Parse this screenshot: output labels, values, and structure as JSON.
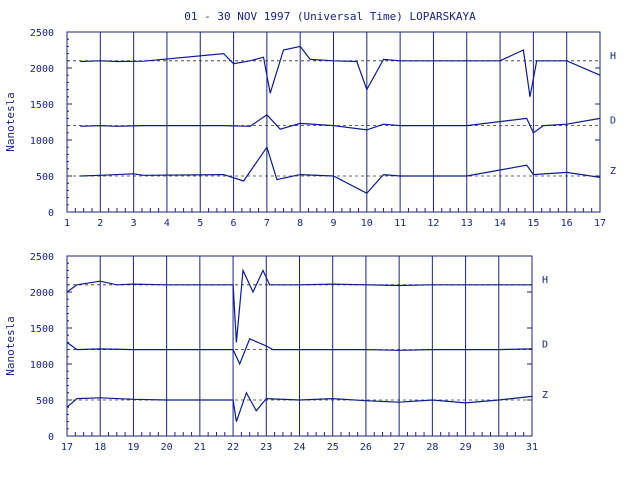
{
  "title": "01 - 30 NOV 1997 (Universal Time) LOPARSKAYA",
  "colors": {
    "ink": "#1a237e",
    "trace": "#0d1a8c"
  },
  "chart_data": [
    {
      "type": "line",
      "ylabel": "Nanotesla",
      "xlim": [
        1,
        17
      ],
      "ylim": [
        0,
        2500
      ],
      "x_ticks": [
        "1",
        "2",
        "3",
        "4",
        "5",
        "6",
        "7",
        "8",
        "9",
        "10",
        "11",
        "12",
        "13",
        "14",
        "15",
        "16",
        "17"
      ],
      "y_ticks": [
        "0",
        "500",
        "1000",
        "1500",
        "2000",
        "2500"
      ],
      "grid": "vertical lines at each day",
      "baselines": [
        2100,
        1200,
        500
      ],
      "series": [
        {
          "name": "H",
          "points": [
            [
              1.4,
              2090
            ],
            [
              2.0,
              2100
            ],
            [
              2.5,
              2090
            ],
            [
              3.3,
              2095
            ],
            [
              5.7,
              2200
            ],
            [
              6.0,
              2060
            ],
            [
              6.5,
              2100
            ],
            [
              6.9,
              2150
            ],
            [
              7.1,
              1650
            ],
            [
              7.5,
              2250
            ],
            [
              8.0,
              2300
            ],
            [
              8.3,
              2120
            ],
            [
              9.0,
              2100
            ],
            [
              9.7,
              2090
            ],
            [
              10.0,
              1700
            ],
            [
              10.5,
              2120
            ],
            [
              11.0,
              2100
            ],
            [
              12.0,
              2100
            ],
            [
              13.0,
              2100
            ],
            [
              14.0,
              2100
            ],
            [
              14.7,
              2250
            ],
            [
              14.9,
              1600
            ],
            [
              15.1,
              2100
            ],
            [
              16.0,
              2100
            ],
            [
              17.0,
              1900
            ]
          ]
        },
        {
          "name": "D",
          "points": [
            [
              1.4,
              1190
            ],
            [
              2.0,
              1200
            ],
            [
              2.5,
              1190
            ],
            [
              3.3,
              1200
            ],
            [
              5.7,
              1200
            ],
            [
              6.5,
              1190
            ],
            [
              7.0,
              1350
            ],
            [
              7.4,
              1150
            ],
            [
              8.0,
              1230
            ],
            [
              9.0,
              1200
            ],
            [
              10.0,
              1140
            ],
            [
              10.5,
              1220
            ],
            [
              11.0,
              1200
            ],
            [
              13.0,
              1200
            ],
            [
              14.8,
              1300
            ],
            [
              15.0,
              1100
            ],
            [
              15.3,
              1200
            ],
            [
              16.0,
              1220
            ],
            [
              17.0,
              1300
            ]
          ]
        },
        {
          "name": "Z",
          "points": [
            [
              1.4,
              500
            ],
            [
              2.0,
              510
            ],
            [
              3.0,
              530
            ],
            [
              3.3,
              510
            ],
            [
              5.7,
              520
            ],
            [
              6.3,
              430
            ],
            [
              7.0,
              900
            ],
            [
              7.3,
              450
            ],
            [
              8.0,
              520
            ],
            [
              9.0,
              500
            ],
            [
              10.0,
              260
            ],
            [
              10.5,
              520
            ],
            [
              11.0,
              500
            ],
            [
              13.0,
              500
            ],
            [
              14.8,
              650
            ],
            [
              15.0,
              520
            ],
            [
              16.0,
              550
            ],
            [
              17.0,
              480
            ]
          ]
        }
      ]
    },
    {
      "type": "line",
      "ylabel": "Nanotesla",
      "xlim": [
        17,
        31
      ],
      "ylim": [
        0,
        2500
      ],
      "x_ticks": [
        "17",
        "18",
        "19",
        "20",
        "21",
        "22",
        "23",
        "24",
        "25",
        "26",
        "27",
        "28",
        "29",
        "30",
        "31"
      ],
      "y_ticks": [
        "0",
        "500",
        "1000",
        "1500",
        "2000",
        "2500"
      ],
      "grid": "vertical lines at each day",
      "baselines": [
        2100,
        1200,
        500
      ],
      "series": [
        {
          "name": "H",
          "points": [
            [
              17.0,
              2000
            ],
            [
              17.3,
              2100
            ],
            [
              18.0,
              2150
            ],
            [
              18.5,
              2100
            ],
            [
              19.0,
              2110
            ],
            [
              20.0,
              2100
            ],
            [
              21.0,
              2100
            ],
            [
              22.0,
              2100
            ],
            [
              22.1,
              1300
            ],
            [
              22.3,
              2300
            ],
            [
              22.6,
              2000
            ],
            [
              22.9,
              2300
            ],
            [
              23.1,
              2100
            ],
            [
              24.0,
              2100
            ],
            [
              25.0,
              2110
            ],
            [
              26.0,
              2100
            ],
            [
              27.0,
              2090
            ],
            [
              28.0,
              2100
            ],
            [
              29.0,
              2100
            ],
            [
              30.0,
              2100
            ],
            [
              31.0,
              2100
            ]
          ]
        },
        {
          "name": "D",
          "points": [
            [
              17.0,
              1300
            ],
            [
              17.3,
              1200
            ],
            [
              18.0,
              1210
            ],
            [
              19.0,
              1200
            ],
            [
              20.0,
              1200
            ],
            [
              22.0,
              1200
            ],
            [
              22.2,
              1000
            ],
            [
              22.5,
              1350
            ],
            [
              23.0,
              1250
            ],
            [
              23.2,
              1200
            ],
            [
              24.0,
              1200
            ],
            [
              26.0,
              1200
            ],
            [
              27.0,
              1190
            ],
            [
              28.0,
              1200
            ],
            [
              30.0,
              1200
            ],
            [
              31.0,
              1210
            ]
          ]
        },
        {
          "name": "Z",
          "points": [
            [
              17.0,
              400
            ],
            [
              17.3,
              520
            ],
            [
              18.0,
              530
            ],
            [
              19.0,
              510
            ],
            [
              20.0,
              500
            ],
            [
              22.0,
              500
            ],
            [
              22.1,
              200
            ],
            [
              22.4,
              600
            ],
            [
              22.7,
              350
            ],
            [
              23.0,
              520
            ],
            [
              24.0,
              500
            ],
            [
              25.0,
              520
            ],
            [
              26.0,
              490
            ],
            [
              27.0,
              470
            ],
            [
              28.0,
              500
            ],
            [
              29.0,
              460
            ],
            [
              30.0,
              500
            ],
            [
              31.0,
              550
            ]
          ]
        }
      ]
    }
  ]
}
